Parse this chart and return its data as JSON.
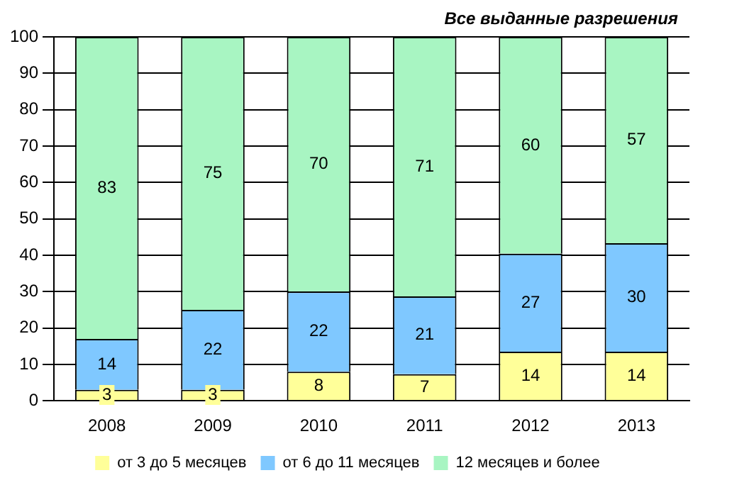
{
  "chart_data": {
    "type": "bar",
    "title": "Все выданные разрешения",
    "stacked": true,
    "categories": [
      "2008",
      "2009",
      "2010",
      "2011",
      "2012",
      "2013"
    ],
    "series": [
      {
        "name": "от 3 до 5 месяцев",
        "color": "#ffff99",
        "values": [
          3,
          3,
          8,
          7.3,
          13.5,
          13.5
        ],
        "value_labels": [
          "3",
          "3",
          "8",
          "7",
          "14",
          "14"
        ]
      },
      {
        "name": "от 6 до 11 месяцев",
        "color": "#7fc8ff",
        "values": [
          14,
          22,
          22,
          21.4,
          26.9,
          29.8
        ],
        "value_labels": [
          "14",
          "22",
          "22",
          "21",
          "27",
          "30"
        ]
      },
      {
        "name": "12 месяцев и более",
        "color": "#a8f5c2",
        "values": [
          83,
          75,
          70,
          71.3,
          59.6,
          56.7
        ],
        "value_labels": [
          "83",
          "75",
          "70",
          "71",
          "60",
          "57"
        ]
      }
    ],
    "ylim": [
      0,
      100
    ],
    "yticks": [
      0,
      10,
      20,
      30,
      40,
      50,
      60,
      70,
      80,
      90,
      100
    ],
    "grid": "y",
    "legend": "bottom"
  }
}
